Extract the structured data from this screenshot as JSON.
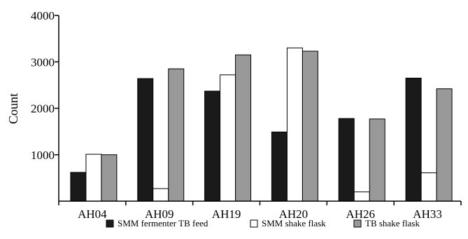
{
  "chart_data": {
    "type": "bar",
    "title": "",
    "xlabel": "",
    "ylabel": "Count",
    "ylim": [
      0,
      4000
    ],
    "yticks": [
      "1000",
      "2000",
      "3000",
      "4000"
    ],
    "categories": [
      "AH04",
      "AH09",
      "AH19",
      "AH20",
      "AH26",
      "AH33"
    ],
    "series": [
      {
        "name": "SMM fermenter TB feed",
        "color": "#1a1a1a",
        "values": [
          620,
          2640,
          2370,
          1490,
          1780,
          2650
        ]
      },
      {
        "name": "SMM shake flask",
        "color": "#ffffff",
        "values": [
          1010,
          270,
          2720,
          3300,
          200,
          610
        ]
      },
      {
        "name": "TB shake flask",
        "color": "#999999",
        "values": [
          1000,
          2850,
          3150,
          3230,
          1770,
          2420
        ]
      }
    ],
    "grid": false,
    "legend_position": "bottom"
  }
}
